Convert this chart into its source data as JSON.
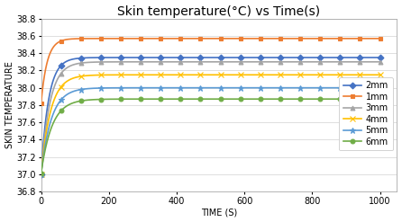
{
  "title": "Skin temperature(°C) vs Time(s)",
  "xlabel": "TIME (S)",
  "ylabel": "SKIN TEMPERATURE",
  "xlim": [
    0,
    1050
  ],
  "ylim": [
    36.8,
    38.8
  ],
  "yticks": [
    36.8,
    37.0,
    37.2,
    37.4,
    37.6,
    37.8,
    38.0,
    38.2,
    38.4,
    38.6,
    38.8
  ],
  "xticks": [
    0,
    200,
    400,
    600,
    800,
    1000
  ],
  "series": [
    {
      "label": "2mm",
      "T_inf": 38.35,
      "T0": 37.0,
      "tau": 22,
      "color": "#4472C4",
      "marker": "D",
      "markersize": 3.5,
      "lw": 1.2
    },
    {
      "label": "1mm",
      "T_inf": 38.57,
      "T0": 37.82,
      "tau": 18,
      "color": "#ED7D31",
      "marker": "s",
      "markersize": 3.5,
      "lw": 1.2
    },
    {
      "label": "3mm",
      "T_inf": 38.3,
      "T0": 37.0,
      "tau": 26,
      "color": "#A5A5A5",
      "marker": "^",
      "markersize": 3.5,
      "lw": 1.2
    },
    {
      "label": "4mm",
      "T_inf": 38.15,
      "T0": 37.0,
      "tau": 28,
      "color": "#FFC000",
      "marker": "x",
      "markersize": 4.5,
      "lw": 1.2
    },
    {
      "label": "5mm",
      "T_inf": 38.0,
      "T0": 37.0,
      "tau": 30,
      "color": "#5B9BD5",
      "marker": "*",
      "markersize": 5,
      "lw": 1.2
    },
    {
      "label": "6mm",
      "T_inf": 37.87,
      "T0": 37.01,
      "tau": 32,
      "color": "#70AD47",
      "marker": "o",
      "markersize": 3.5,
      "lw": 1.2
    }
  ],
  "n_markers": 18,
  "background_color": "#FFFFFF",
  "title_fontsize": 10,
  "axis_label_fontsize": 7,
  "tick_fontsize": 7,
  "legend_fontsize": 7
}
